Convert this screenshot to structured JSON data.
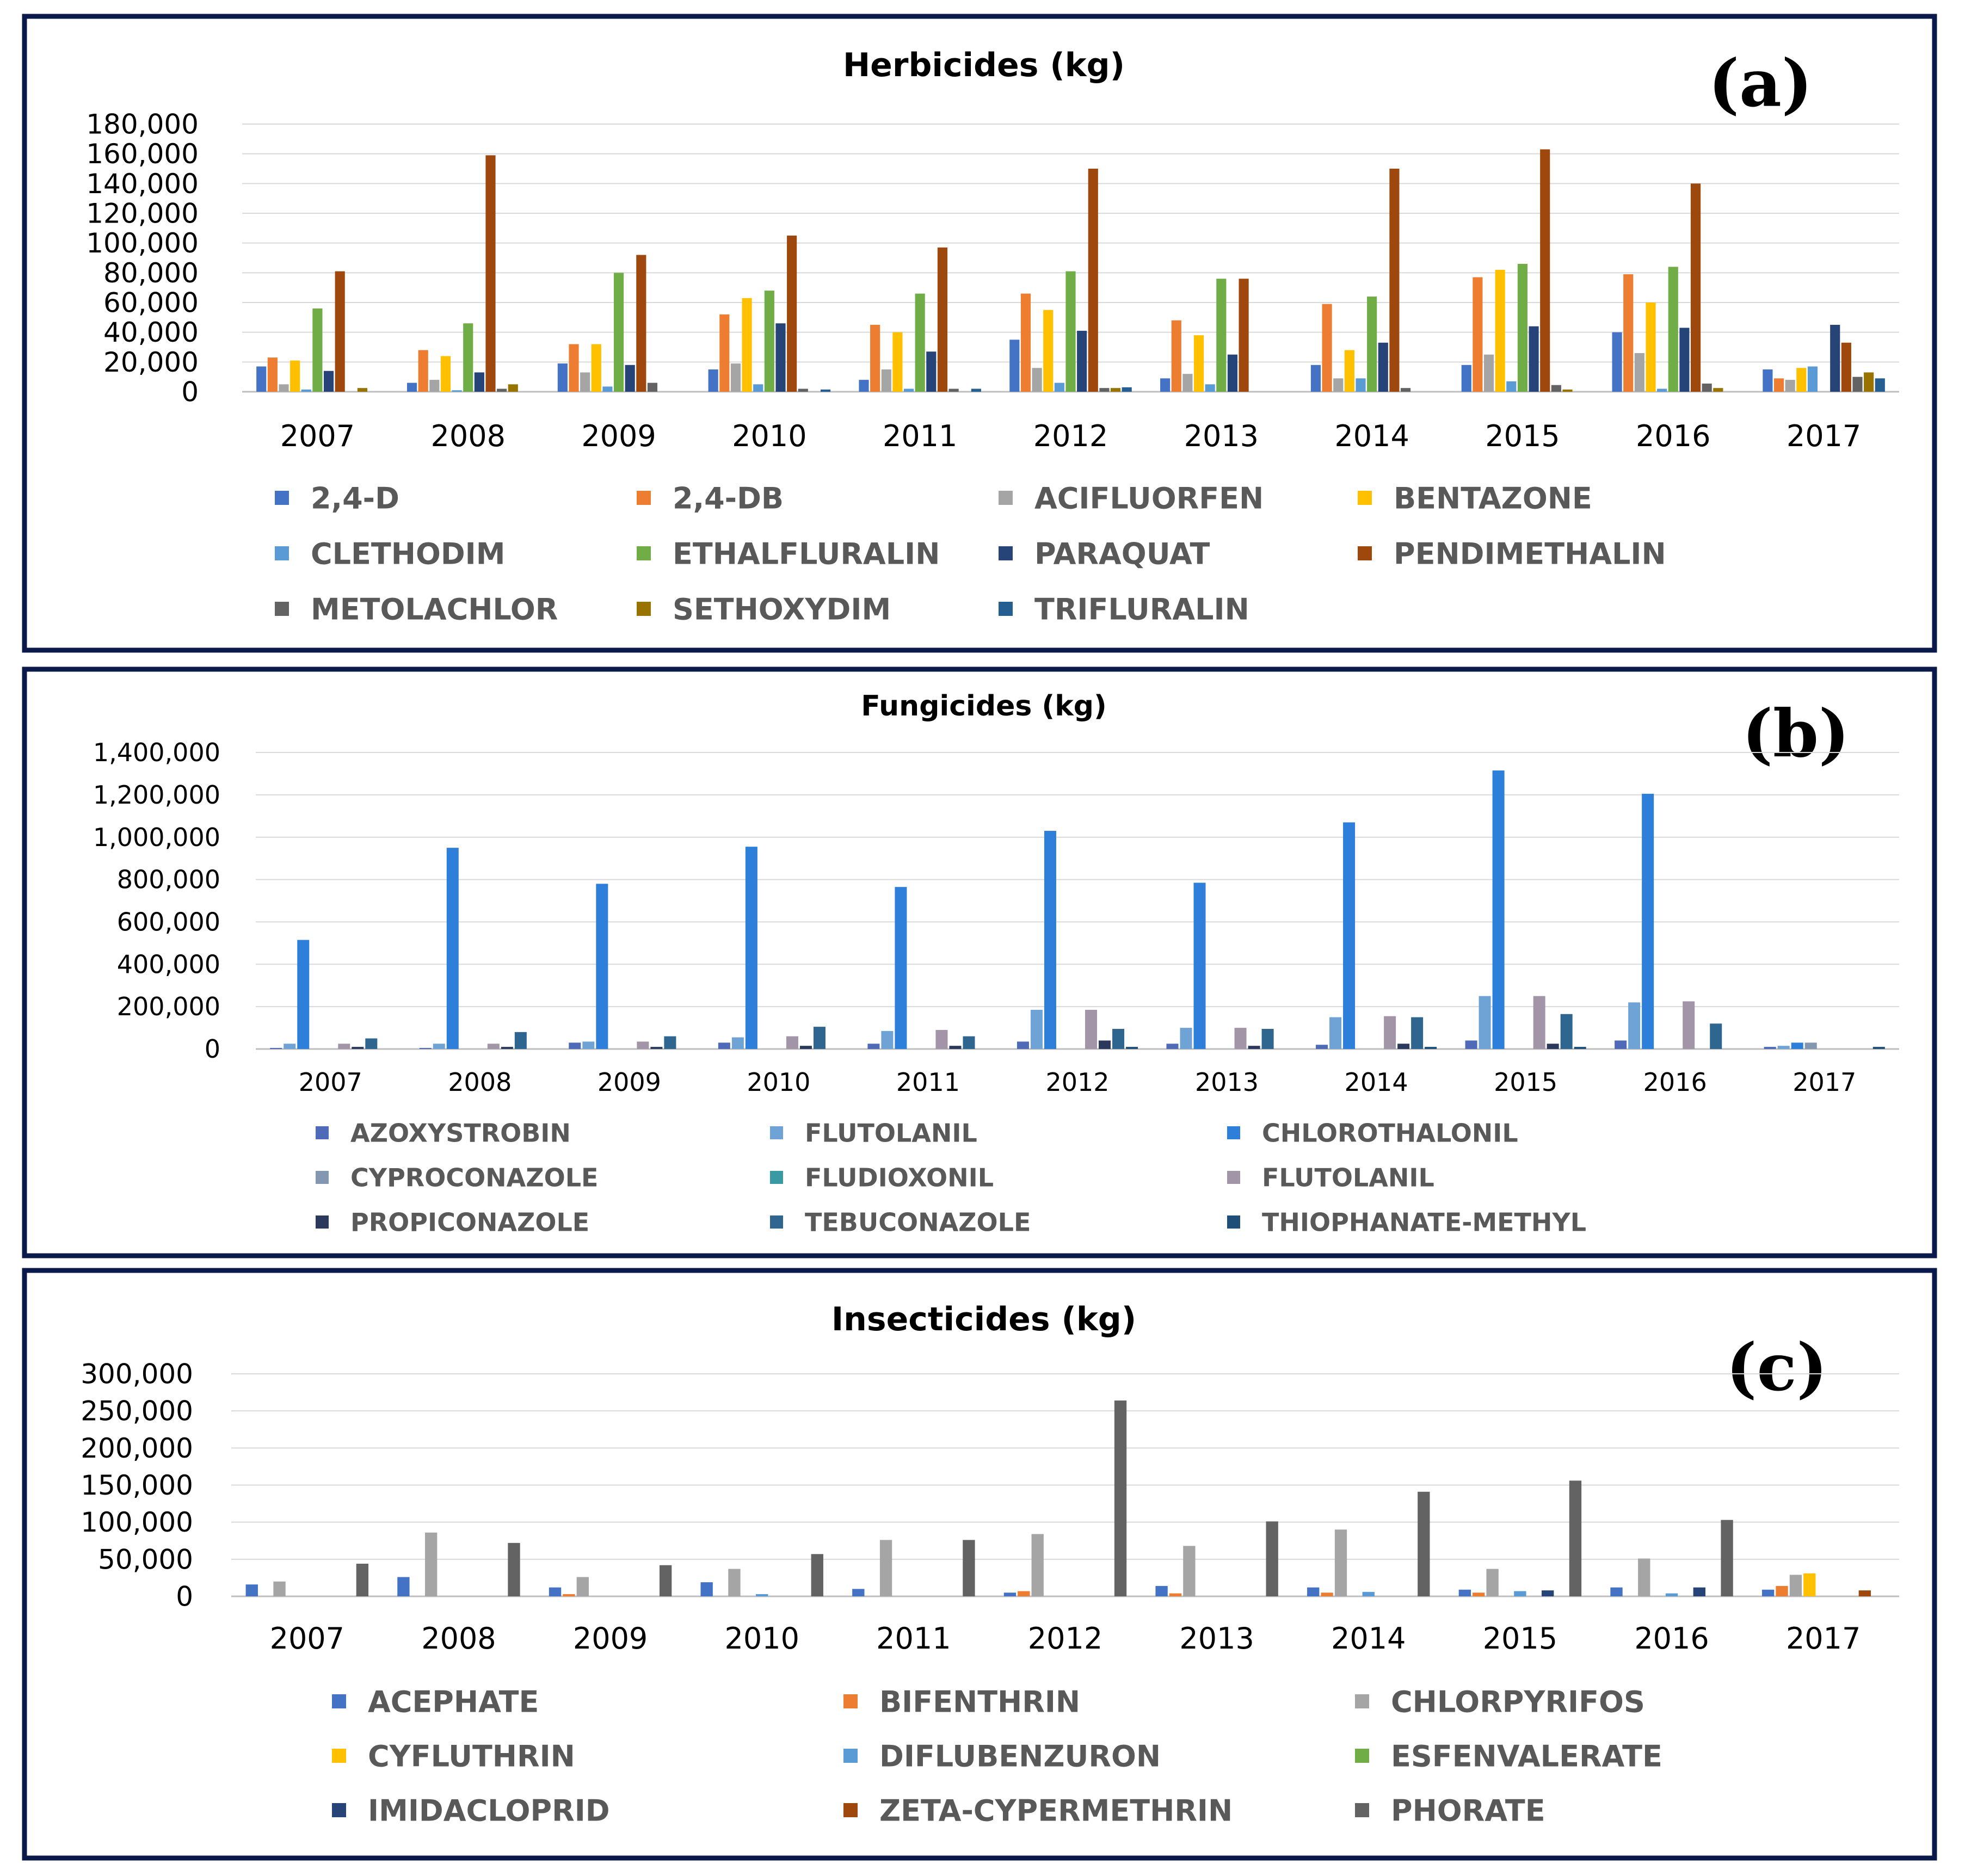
{
  "chart_data": [
    {
      "id": "a",
      "type": "bar",
      "panel_label": "(a)",
      "title": "Herbicides (kg)",
      "xlabel": "",
      "ylabel": "",
      "categories": [
        "2007",
        "2008",
        "2009",
        "2010",
        "2011",
        "2012",
        "2013",
        "2014",
        "2015",
        "2016",
        "2017"
      ],
      "ylim": [
        0,
        180000
      ],
      "yticks": [
        0,
        20000,
        40000,
        60000,
        80000,
        100000,
        120000,
        140000,
        160000,
        180000
      ],
      "ytick_labels": [
        "0",
        "20,000",
        "40,000",
        "60,000",
        "80,000",
        "100,000",
        "120,000",
        "140,000",
        "160,000",
        "180,000"
      ],
      "grid": true,
      "legend_position": "bottom",
      "legend_columns": 4,
      "series": [
        {
          "name": "2,4-D",
          "color": "#4472C4",
          "values": [
            17000,
            6000,
            19000,
            15000,
            8000,
            35000,
            9000,
            18000,
            18000,
            40000,
            15000
          ]
        },
        {
          "name": "2,4-DB",
          "color": "#ED7D31",
          "values": [
            23000,
            28000,
            32000,
            52000,
            45000,
            66000,
            48000,
            59000,
            77000,
            79000,
            9000
          ]
        },
        {
          "name": "ACIFLUORFEN",
          "color": "#A5A5A5",
          "values": [
            5000,
            8000,
            13000,
            19000,
            15000,
            16000,
            12000,
            9000,
            25000,
            26000,
            8000
          ]
        },
        {
          "name": "BENTAZONE",
          "color": "#FFC000",
          "values": [
            21000,
            24000,
            32000,
            63000,
            40000,
            55000,
            38000,
            28000,
            82000,
            60000,
            16000
          ]
        },
        {
          "name": "CLETHODIM",
          "color": "#5B9BD5",
          "values": [
            1500,
            1000,
            3500,
            5000,
            2000,
            6000,
            5000,
            9000,
            7000,
            2000,
            17000
          ]
        },
        {
          "name": "ETHALFLURALIN",
          "color": "#70AD47",
          "values": [
            56000,
            46000,
            80000,
            68000,
            66000,
            81000,
            76000,
            64000,
            86000,
            84000,
            0
          ]
        },
        {
          "name": "PARAQUAT",
          "color": "#264478",
          "values": [
            14000,
            13000,
            18000,
            46000,
            27000,
            41000,
            25000,
            33000,
            44000,
            43000,
            45000
          ]
        },
        {
          "name": "PENDIMETHALIN",
          "color": "#9E480E",
          "values": [
            81000,
            159000,
            92000,
            105000,
            97000,
            150000,
            76000,
            150000,
            163000,
            140000,
            33000
          ]
        },
        {
          "name": "METOLACHLOR",
          "color": "#636363",
          "values": [
            0,
            2000,
            6000,
            2000,
            2000,
            2500,
            0,
            2500,
            4500,
            5500,
            10000
          ]
        },
        {
          "name": "SETHOXYDIM",
          "color": "#997300",
          "values": [
            2500,
            5000,
            0,
            0,
            0,
            2500,
            0,
            0,
            1500,
            2500,
            13000
          ]
        },
        {
          "name": "TRIFLURALIN",
          "color": "#255E91",
          "values": [
            0,
            0,
            0,
            1500,
            2000,
            3000,
            0,
            0,
            0,
            0,
            9000
          ]
        }
      ]
    },
    {
      "id": "b",
      "type": "bar",
      "panel_label": "(b)",
      "title": "Fungicides (kg)",
      "xlabel": "",
      "ylabel": "",
      "categories": [
        "2007",
        "2008",
        "2009",
        "2010",
        "2011",
        "2012",
        "2013",
        "2014",
        "2015",
        "2016",
        "2017"
      ],
      "ylim": [
        0,
        1400000
      ],
      "yticks": [
        0,
        200000,
        400000,
        600000,
        800000,
        1000000,
        1200000,
        1400000
      ],
      "ytick_labels": [
        "0",
        "200,000",
        "400,000",
        "600,000",
        "800,000",
        "1,000,000",
        "1,200,000",
        "1,400,000"
      ],
      "grid": true,
      "legend_position": "bottom",
      "legend_columns": 3,
      "series": [
        {
          "name": "AZOXYSTROBIN",
          "color": "#4F6BB8",
          "values": [
            5000,
            5000,
            30000,
            30000,
            25000,
            35000,
            25000,
            20000,
            40000,
            40000,
            10000
          ]
        },
        {
          "name": "FLUTOLANIL",
          "color": "#6FA3D6",
          "values": [
            25000,
            25000,
            35000,
            55000,
            85000,
            185000,
            100000,
            150000,
            250000,
            220000,
            15000
          ]
        },
        {
          "name": "CHLOROTHALONIL",
          "color": "#2E7FD9",
          "values": [
            515000,
            950000,
            780000,
            955000,
            765000,
            1030000,
            785000,
            1070000,
            1315000,
            1205000,
            30000
          ]
        },
        {
          "name": "CYPROCONAZOLE",
          "color": "#8497B0",
          "values": [
            0,
            0,
            0,
            0,
            0,
            0,
            0,
            0,
            0,
            0,
            30000
          ]
        },
        {
          "name": "FLUDIOXONIL",
          "color": "#3A9AA3",
          "values": [
            0,
            0,
            0,
            0,
            0,
            0,
            0,
            0,
            0,
            0,
            0
          ]
        },
        {
          "name": "FLUTOLANIL",
          "color": "#A295A8",
          "values": [
            25000,
            25000,
            35000,
            60000,
            90000,
            185000,
            100000,
            155000,
            250000,
            225000,
            0
          ]
        },
        {
          "name": "PROPICONAZOLE",
          "color": "#2B3A5C",
          "values": [
            10000,
            10000,
            10000,
            15000,
            15000,
            40000,
            15000,
            25000,
            25000,
            0,
            0
          ]
        },
        {
          "name": "TEBUCONAZOLE",
          "color": "#2F6690",
          "values": [
            50000,
            80000,
            60000,
            105000,
            60000,
            95000,
            95000,
            150000,
            165000,
            120000,
            0
          ]
        },
        {
          "name": "THIOPHANATE-METHYL",
          "color": "#1F4E79",
          "values": [
            0,
            0,
            0,
            0,
            0,
            10000,
            0,
            10000,
            10000,
            0,
            10000
          ]
        }
      ]
    },
    {
      "id": "c",
      "type": "bar",
      "panel_label": "(c)",
      "title": "Insecticides (kg)",
      "xlabel": "",
      "ylabel": "",
      "categories": [
        "2007",
        "2008",
        "2009",
        "2010",
        "2011",
        "2012",
        "2013",
        "2014",
        "2015",
        "2016",
        "2017"
      ],
      "ylim": [
        0,
        300000
      ],
      "yticks": [
        0,
        50000,
        100000,
        150000,
        200000,
        250000,
        300000
      ],
      "ytick_labels": [
        "0",
        "50,000",
        "100,000",
        "150,000",
        "200,000",
        "250,000",
        "300,000"
      ],
      "grid": true,
      "legend_position": "bottom",
      "legend_columns": 3,
      "series": [
        {
          "name": "ACEPHATE",
          "color": "#4472C4",
          "values": [
            16000,
            26000,
            12000,
            19000,
            10000,
            5000,
            14000,
            12000,
            9000,
            12000,
            9000
          ]
        },
        {
          "name": "BIFENTHRIN",
          "color": "#ED7D31",
          "values": [
            0,
            0,
            3000,
            0,
            0,
            7000,
            4000,
            5000,
            5000,
            0,
            14000
          ]
        },
        {
          "name": "CHLORPYRIFOS",
          "color": "#A5A5A5",
          "values": [
            20000,
            86000,
            26000,
            37000,
            76000,
            84000,
            68000,
            90000,
            37000,
            51000,
            29000
          ]
        },
        {
          "name": "CYFLUTHRIN",
          "color": "#FFC000",
          "values": [
            0,
            0,
            0,
            0,
            0,
            0,
            0,
            0,
            0,
            0,
            31000
          ]
        },
        {
          "name": "DIFLUBENZURON",
          "color": "#5B9BD5",
          "values": [
            0,
            0,
            0,
            3000,
            0,
            0,
            0,
            6000,
            7000,
            4000,
            0
          ]
        },
        {
          "name": "ESFENVALERATE",
          "color": "#70AD47",
          "values": [
            0,
            0,
            0,
            0,
            0,
            0,
            0,
            0,
            0,
            0,
            0
          ]
        },
        {
          "name": "IMIDACLOPRID",
          "color": "#264478",
          "values": [
            0,
            0,
            0,
            0,
            0,
            0,
            0,
            0,
            8000,
            12000,
            0
          ]
        },
        {
          "name": "ZETA-CYPERMETHRIN",
          "color": "#9E480E",
          "values": [
            0,
            0,
            0,
            0,
            0,
            0,
            0,
            0,
            0,
            0,
            8000
          ]
        },
        {
          "name": "PHORATE",
          "color": "#636363",
          "values": [
            44000,
            72000,
            42000,
            57000,
            76000,
            264000,
            101000,
            141000,
            156000,
            103000,
            0
          ]
        }
      ]
    }
  ],
  "frame_color": "#0B1A4B"
}
